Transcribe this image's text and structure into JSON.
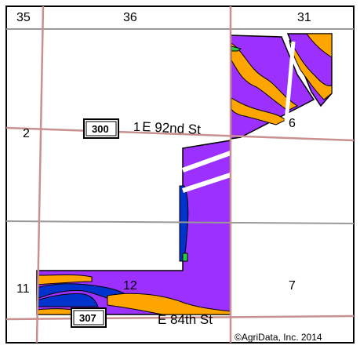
{
  "map": {
    "section_numbers": {
      "top_left": "35",
      "top_middle": "36",
      "top_right": "31",
      "left_middle": "2",
      "left_lower": "11",
      "inner_lower": "12",
      "right_lower": "7",
      "right_middle": "6",
      "road_inline": "1"
    },
    "roads": {
      "north_road": "E 92nd St",
      "south_road": "E 84th St"
    },
    "shields": {
      "north": "300",
      "south": "307"
    },
    "copyright": "©AgriData, Inc. 2014",
    "colors": {
      "soil_purple": "#9b30ff",
      "soil_orange": "#ffa500",
      "soil_blue": "#0033cc",
      "soil_green": "#2ecc40",
      "road_line": "#c89090",
      "grid_line": "#999999",
      "border": "#000000"
    }
  }
}
